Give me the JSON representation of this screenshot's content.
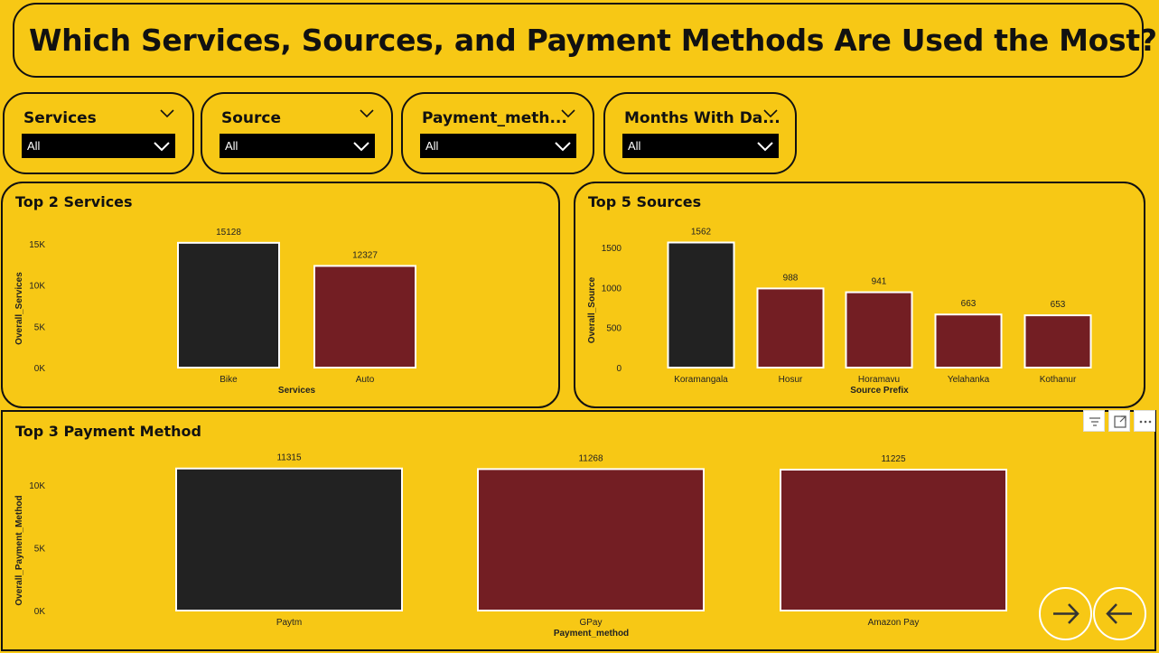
{
  "header": {
    "title": "Which Services, Sources, and Payment Methods Are Used the Most?"
  },
  "slicers": [
    {
      "title": "Services",
      "value": "All"
    },
    {
      "title": "Source",
      "value": "All"
    },
    {
      "title": "Payment_meth...",
      "value": "All"
    },
    {
      "title": "Months With Da...",
      "value": "All"
    }
  ],
  "toolbar": {
    "filter_icon": "filter-icon",
    "focus_icon": "focus-mode-icon",
    "more_icon": "more-options-icon"
  },
  "nav": {
    "next_icon": "arrow-right-icon",
    "back_icon": "arrow-left-icon"
  },
  "colors": {
    "background": "#F7C815",
    "top_bar": "#222222",
    "other_bar": "#731E23"
  },
  "chart_data": [
    {
      "type": "bar",
      "title": "Top 2 Services",
      "categories": [
        "Bike",
        "Auto"
      ],
      "values": [
        15128,
        12327
      ],
      "value_labels": [
        "15128",
        "12327"
      ],
      "xlabel": "Services",
      "ylabel": "Overall_Services",
      "ylim": [
        0,
        15000
      ],
      "yticks": [
        "0K",
        "5K",
        "10K",
        "15K"
      ],
      "grid": false,
      "bar_colors": [
        "#222222",
        "#731E23"
      ]
    },
    {
      "type": "bar",
      "title": "Top 5 Sources",
      "categories": [
        "Koramangala",
        "Hosur",
        "Horamavu",
        "Yelahanka",
        "Kothanur"
      ],
      "values": [
        1562,
        988,
        941,
        663,
        653
      ],
      "value_labels": [
        "1562",
        "988",
        "941",
        "663",
        "653"
      ],
      "xlabel": "Source Prefix",
      "ylabel": "Overall_Source",
      "ylim": [
        0,
        1500
      ],
      "yticks": [
        "0",
        "500",
        "1000",
        "1500"
      ],
      "grid": false,
      "bar_colors": [
        "#222222",
        "#731E23",
        "#731E23",
        "#731E23",
        "#731E23"
      ]
    },
    {
      "type": "bar",
      "title": "Top 3 Payment Method",
      "categories": [
        "Paytm",
        "GPay",
        "Amazon Pay"
      ],
      "values": [
        11315,
        11268,
        11225
      ],
      "value_labels": [
        "11315",
        "11268",
        "11225"
      ],
      "xlabel": "Payment_method",
      "ylabel": "Overall_Payment_Method",
      "ylim": [
        0,
        10000
      ],
      "yticks": [
        "0K",
        "5K",
        "10K"
      ],
      "grid": false,
      "bar_colors": [
        "#222222",
        "#731E23",
        "#731E23"
      ]
    }
  ]
}
